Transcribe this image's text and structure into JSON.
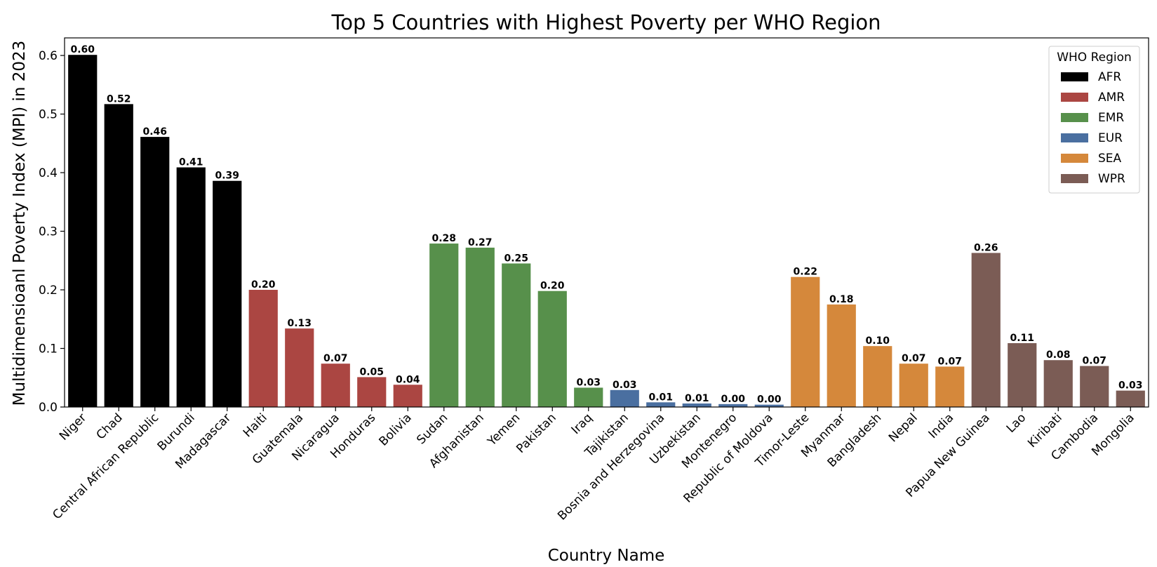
{
  "chart_data": {
    "type": "bar",
    "title": "Top 5 Countries with Highest Poverty per WHO Region",
    "xlabel": "Country Name",
    "ylabel": "Multidimensioanl Poverty Index (MPI) in 2023",
    "ylim": [
      0,
      0.63
    ],
    "yticks": [
      "0.0",
      "0.1",
      "0.2",
      "0.3",
      "0.4",
      "0.5",
      "0.6"
    ],
    "grid": false,
    "legend": {
      "title": "WHO Region",
      "placement": "top-right",
      "entries": [
        {
          "name": "AFR",
          "color": "#000000"
        },
        {
          "name": "AMR",
          "color": "#ab4642"
        },
        {
          "name": "EMR",
          "color": "#57904b"
        },
        {
          "name": "EUR",
          "color": "#4a6fa0"
        },
        {
          "name": "SEA",
          "color": "#d5883b"
        },
        {
          "name": "WPR",
          "color": "#7b5c55"
        }
      ]
    },
    "categories": [
      "Niger",
      "Chad",
      "Central African Republic",
      "Burundi",
      "Madagascar",
      "Haiti",
      "Guatemala",
      "Nicaragua",
      "Honduras",
      "Bolivia",
      "Sudan",
      "Afghanistan",
      "Yemen",
      "Pakistan",
      "Iraq",
      "Tajikistan",
      "Bosnia and Herzegovina",
      "Uzbekistan",
      "Montenegro",
      "Republic of Moldova",
      "Timor-Leste",
      "Myanmar",
      "Bangladesh",
      "Nepal",
      "India",
      "Papua New Guinea",
      "Lao",
      "Kiribati",
      "Cambodia",
      "Mongolia"
    ],
    "values": [
      0.601,
      0.517,
      0.461,
      0.409,
      0.386,
      0.2,
      0.134,
      0.074,
      0.051,
      0.038,
      0.279,
      0.272,
      0.245,
      0.198,
      0.033,
      0.029,
      0.008,
      0.006,
      0.005,
      0.004,
      0.222,
      0.175,
      0.104,
      0.074,
      0.069,
      0.263,
      0.109,
      0.08,
      0.07,
      0.028
    ],
    "labels": [
      "0.60",
      "0.52",
      "0.46",
      "0.41",
      "0.39",
      "0.20",
      "0.13",
      "0.07",
      "0.05",
      "0.04",
      "0.28",
      "0.27",
      "0.25",
      "0.20",
      "0.03",
      "0.03",
      "0.01",
      "0.01",
      "0.00",
      "0.00",
      "0.22",
      "0.18",
      "0.10",
      "0.07",
      "0.07",
      "0.26",
      "0.11",
      "0.08",
      "0.07",
      "0.03"
    ],
    "regions": [
      "AFR",
      "AFR",
      "AFR",
      "AFR",
      "AFR",
      "AMR",
      "AMR",
      "AMR",
      "AMR",
      "AMR",
      "EMR",
      "EMR",
      "EMR",
      "EMR",
      "EMR",
      "EUR",
      "EUR",
      "EUR",
      "EUR",
      "EUR",
      "SEA",
      "SEA",
      "SEA",
      "SEA",
      "SEA",
      "WPR",
      "WPR",
      "WPR",
      "WPR",
      "WPR"
    ]
  }
}
